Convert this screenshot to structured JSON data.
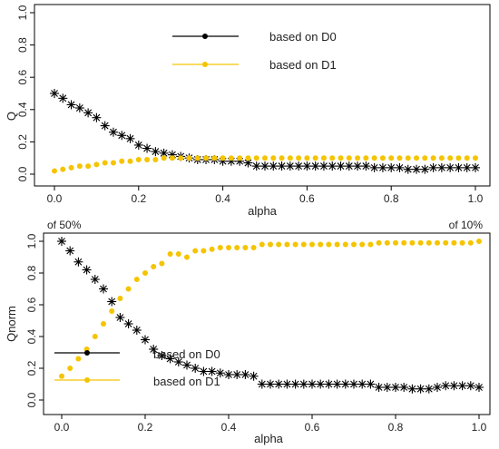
{
  "chart_data": [
    {
      "type": "scatter",
      "title": "",
      "xlabel": "alpha",
      "ylabel": "Q",
      "xlim": [
        0,
        1
      ],
      "ylim": [
        0,
        1
      ],
      "xticks": [
        "0.0",
        "0.2",
        "0.4",
        "0.6",
        "0.8",
        "1.0"
      ],
      "yticks": [
        "0.0",
        "0.2",
        "0.4",
        "0.6",
        "0.8",
        "1.0"
      ],
      "grid": false,
      "legend_position": "top-center",
      "corner_labels": {
        "left": "",
        "right": ""
      },
      "series": [
        {
          "name": "based on D0",
          "color": "#000000",
          "marker": "star",
          "x": [
            0.0,
            0.02,
            0.04,
            0.06,
            0.08,
            0.1,
            0.12,
            0.14,
            0.16,
            0.18,
            0.2,
            0.22,
            0.24,
            0.26,
            0.28,
            0.3,
            0.32,
            0.34,
            0.36,
            0.38,
            0.4,
            0.42,
            0.44,
            0.46,
            0.48,
            0.5,
            0.52,
            0.54,
            0.56,
            0.58,
            0.6,
            0.62,
            0.64,
            0.66,
            0.68,
            0.7,
            0.72,
            0.74,
            0.76,
            0.78,
            0.8,
            0.82,
            0.84,
            0.86,
            0.88,
            0.9,
            0.92,
            0.94,
            0.96,
            0.98,
            1.0
          ],
          "values": [
            0.5,
            0.47,
            0.43,
            0.41,
            0.38,
            0.35,
            0.3,
            0.26,
            0.24,
            0.22,
            0.18,
            0.16,
            0.14,
            0.13,
            0.12,
            0.11,
            0.1,
            0.09,
            0.09,
            0.09,
            0.08,
            0.08,
            0.08,
            0.07,
            0.05,
            0.05,
            0.05,
            0.05,
            0.05,
            0.05,
            0.05,
            0.05,
            0.05,
            0.05,
            0.05,
            0.05,
            0.05,
            0.05,
            0.04,
            0.04,
            0.04,
            0.04,
            0.03,
            0.03,
            0.03,
            0.04,
            0.04,
            0.04,
            0.04,
            0.04,
            0.04
          ]
        },
        {
          "name": "based on D1",
          "color": "#f5c400",
          "marker": "dot",
          "x": [
            0.0,
            0.02,
            0.04,
            0.06,
            0.08,
            0.1,
            0.12,
            0.14,
            0.16,
            0.18,
            0.2,
            0.22,
            0.24,
            0.26,
            0.28,
            0.3,
            0.32,
            0.34,
            0.36,
            0.38,
            0.4,
            0.42,
            0.44,
            0.46,
            0.48,
            0.5,
            0.52,
            0.54,
            0.56,
            0.58,
            0.6,
            0.62,
            0.64,
            0.66,
            0.68,
            0.7,
            0.72,
            0.74,
            0.76,
            0.78,
            0.8,
            0.82,
            0.84,
            0.86,
            0.88,
            0.9,
            0.92,
            0.94,
            0.96,
            0.98,
            1.0
          ],
          "values": [
            0.02,
            0.03,
            0.04,
            0.05,
            0.05,
            0.06,
            0.07,
            0.07,
            0.08,
            0.08,
            0.09,
            0.09,
            0.09,
            0.1,
            0.1,
            0.1,
            0.1,
            0.1,
            0.1,
            0.1,
            0.1,
            0.1,
            0.1,
            0.1,
            0.1,
            0.1,
            0.1,
            0.1,
            0.1,
            0.1,
            0.1,
            0.1,
            0.1,
            0.1,
            0.1,
            0.1,
            0.1,
            0.1,
            0.1,
            0.1,
            0.1,
            0.1,
            0.1,
            0.1,
            0.1,
            0.1,
            0.1,
            0.1,
            0.1,
            0.1,
            0.1
          ]
        }
      ]
    },
    {
      "type": "scatter",
      "title": "",
      "xlabel": "alpha",
      "ylabel": "Qnorm",
      "xlim": [
        0,
        1
      ],
      "ylim": [
        0,
        1
      ],
      "xticks": [
        "0.0",
        "0.2",
        "0.4",
        "0.6",
        "0.8",
        "1.0"
      ],
      "yticks": [
        "0.0",
        "0.2",
        "0.4",
        "0.6",
        "0.8",
        "1.0"
      ],
      "grid": false,
      "legend_position": "bottom-left",
      "corner_labels": {
        "left": "of 50%",
        "right": "of 10%"
      },
      "series": [
        {
          "name": "based on D0",
          "color": "#000000",
          "marker": "star",
          "x": [
            0.0,
            0.02,
            0.04,
            0.06,
            0.08,
            0.1,
            0.12,
            0.14,
            0.16,
            0.18,
            0.2,
            0.22,
            0.24,
            0.26,
            0.28,
            0.3,
            0.32,
            0.34,
            0.36,
            0.38,
            0.4,
            0.42,
            0.44,
            0.46,
            0.48,
            0.5,
            0.52,
            0.54,
            0.56,
            0.58,
            0.6,
            0.62,
            0.64,
            0.66,
            0.68,
            0.7,
            0.72,
            0.74,
            0.76,
            0.78,
            0.8,
            0.82,
            0.84,
            0.86,
            0.88,
            0.9,
            0.92,
            0.94,
            0.96,
            0.98,
            1.0
          ],
          "values": [
            1.0,
            0.94,
            0.87,
            0.82,
            0.76,
            0.7,
            0.62,
            0.52,
            0.48,
            0.44,
            0.38,
            0.32,
            0.28,
            0.26,
            0.24,
            0.22,
            0.2,
            0.18,
            0.18,
            0.17,
            0.16,
            0.16,
            0.16,
            0.15,
            0.1,
            0.1,
            0.1,
            0.1,
            0.1,
            0.1,
            0.1,
            0.1,
            0.1,
            0.1,
            0.1,
            0.1,
            0.1,
            0.1,
            0.08,
            0.08,
            0.08,
            0.08,
            0.07,
            0.07,
            0.07,
            0.08,
            0.09,
            0.09,
            0.09,
            0.09,
            0.08
          ]
        },
        {
          "name": "based on D1",
          "color": "#f5c400",
          "marker": "dot",
          "x": [
            0.0,
            0.02,
            0.04,
            0.06,
            0.08,
            0.1,
            0.12,
            0.14,
            0.16,
            0.18,
            0.2,
            0.22,
            0.24,
            0.26,
            0.28,
            0.3,
            0.32,
            0.34,
            0.36,
            0.38,
            0.4,
            0.42,
            0.44,
            0.46,
            0.48,
            0.5,
            0.52,
            0.54,
            0.56,
            0.58,
            0.6,
            0.62,
            0.64,
            0.66,
            0.68,
            0.7,
            0.72,
            0.74,
            0.76,
            0.78,
            0.8,
            0.82,
            0.84,
            0.86,
            0.88,
            0.9,
            0.92,
            0.94,
            0.96,
            0.98,
            1.0
          ],
          "values": [
            0.15,
            0.2,
            0.26,
            0.32,
            0.4,
            0.48,
            0.56,
            0.64,
            0.7,
            0.76,
            0.8,
            0.84,
            0.86,
            0.92,
            0.92,
            0.9,
            0.94,
            0.94,
            0.95,
            0.96,
            0.96,
            0.96,
            0.96,
            0.96,
            0.98,
            0.98,
            0.98,
            0.98,
            0.98,
            0.98,
            0.98,
            0.98,
            0.98,
            0.98,
            0.98,
            0.98,
            0.98,
            0.98,
            0.99,
            0.99,
            0.99,
            0.99,
            0.99,
            0.99,
            0.99,
            0.99,
            0.99,
            0.99,
            0.99,
            0.99,
            1.0
          ]
        }
      ]
    }
  ]
}
